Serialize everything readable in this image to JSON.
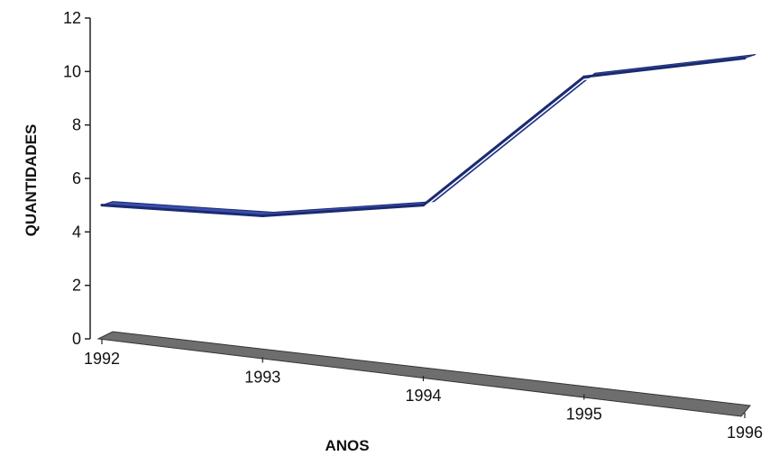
{
  "chart_data": {
    "type": "line",
    "title": "",
    "xlabel": "ANOS",
    "ylabel": "QUANTIDADES",
    "categories": [
      "1992",
      "1993",
      "1994",
      "1995",
      "1996"
    ],
    "series": [
      {
        "values": [
          5,
          4.6,
          5,
          9.8,
          10.5
        ]
      }
    ],
    "y_ticks": [
      "0",
      "2",
      "4",
      "6",
      "8",
      "10",
      "12"
    ],
    "ylim": [
      0,
      12
    ],
    "grid": false,
    "style": "3d-ribbon",
    "colors": {
      "line": "#1c2a6e",
      "line_highlight": "#3a4fb0",
      "floor": "#6e6e6e",
      "axis": "#222222"
    }
  }
}
